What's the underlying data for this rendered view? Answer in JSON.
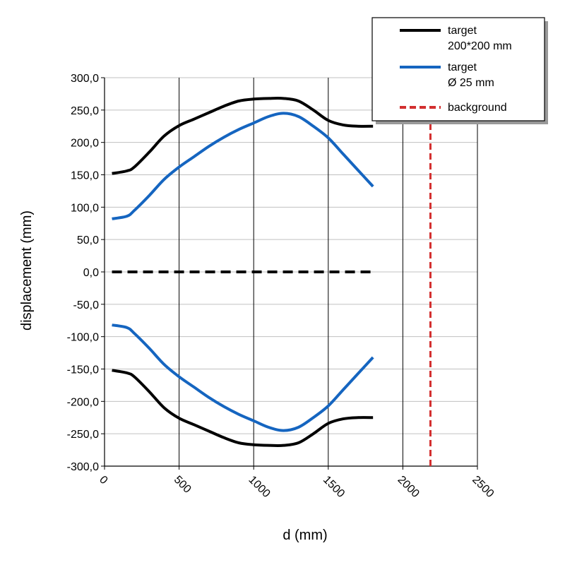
{
  "chart_data": {
    "type": "line",
    "xlabel": "d (mm)",
    "ylabel": "displacement (mm)",
    "xlim": [
      0,
      2500
    ],
    "ylim": [
      -300,
      300
    ],
    "x_ticks": [
      0,
      500,
      1000,
      1500,
      2000,
      2500
    ],
    "x_tick_labels": [
      "0",
      "500",
      "1000",
      "1500",
      "2000",
      "2500"
    ],
    "y_ticks": [
      300,
      250,
      200,
      150,
      100,
      50,
      0,
      -50,
      -100,
      -150,
      -200,
      -250,
      -300
    ],
    "y_tick_labels": [
      "300,0",
      "250,0",
      "200,0",
      "150,0",
      "100,0",
      "50,0",
      "0,0",
      "-50,0",
      "-100,0",
      "-150,0",
      "-200,0",
      "-250,0",
      "-300,0"
    ],
    "grid": {
      "horizontal": true,
      "vertical": true
    },
    "legend_position": "top-right",
    "legend": [
      {
        "label_lines": [
          "target",
          "200*200 mm"
        ],
        "color": "#000000",
        "style": "solid"
      },
      {
        "label_lines": [
          "target",
          "Ø 25 mm"
        ],
        "color": "#1565c0",
        "style": "solid"
      },
      {
        "label_lines": [
          "background"
        ],
        "color": "#d32f2f",
        "style": "dashed"
      }
    ],
    "series": [
      {
        "color": "#000000",
        "style": "solid",
        "part": "upper",
        "x": [
          50,
          150,
          200,
          300,
          400,
          500,
          600,
          700,
          800,
          900,
          1000,
          1100,
          1200,
          1300,
          1400,
          1500,
          1600,
          1700,
          1800
        ],
        "y": [
          152,
          156,
          162,
          185,
          210,
          226,
          236,
          246,
          256,
          264,
          267,
          268,
          268,
          264,
          250,
          234,
          227,
          225,
          225
        ]
      },
      {
        "color": "#000000",
        "style": "solid",
        "part": "lower",
        "x": [
          50,
          150,
          200,
          300,
          400,
          500,
          600,
          700,
          800,
          900,
          1000,
          1100,
          1200,
          1300,
          1400,
          1500,
          1600,
          1700,
          1800
        ],
        "y": [
          -152,
          -156,
          -162,
          -185,
          -210,
          -226,
          -236,
          -246,
          -256,
          -264,
          -267,
          -268,
          -268,
          -264,
          -250,
          -234,
          -227,
          -225,
          -225
        ]
      },
      {
        "color": "#1565c0",
        "style": "solid",
        "part": "upper",
        "x": [
          50,
          150,
          200,
          300,
          400,
          500,
          600,
          700,
          800,
          900,
          1000,
          1100,
          1200,
          1300,
          1400,
          1500,
          1600,
          1700,
          1800
        ],
        "y": [
          82,
          86,
          95,
          118,
          143,
          162,
          178,
          194,
          208,
          220,
          230,
          240,
          245,
          240,
          225,
          207,
          182,
          157,
          132
        ]
      },
      {
        "color": "#1565c0",
        "style": "solid",
        "part": "lower",
        "x": [
          50,
          150,
          200,
          300,
          400,
          500,
          600,
          700,
          800,
          900,
          1000,
          1100,
          1200,
          1300,
          1400,
          1500,
          1600,
          1700,
          1800
        ],
        "y": [
          -82,
          -86,
          -95,
          -118,
          -143,
          -162,
          -178,
          -194,
          -208,
          -220,
          -230,
          -240,
          -245,
          -240,
          -225,
          -207,
          -182,
          -157,
          -132
        ]
      },
      {
        "color": "#000000",
        "style": "dashed",
        "part": "zero-line",
        "x": [
          50,
          1800
        ],
        "y": [
          0,
          0
        ]
      },
      {
        "color": "#d32f2f",
        "style": "dashed",
        "part": "background-line",
        "x": [
          2185,
          2185
        ],
        "y": [
          -300,
          230
        ]
      }
    ]
  }
}
